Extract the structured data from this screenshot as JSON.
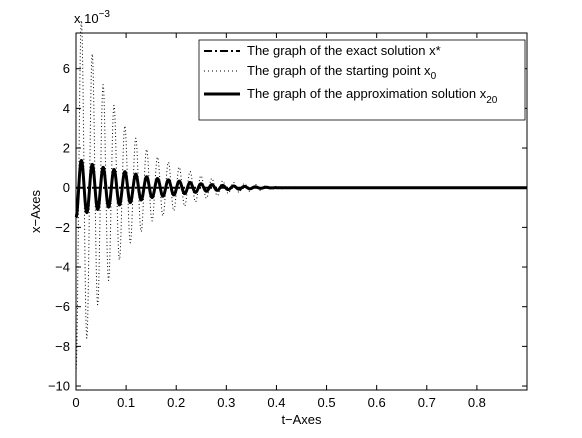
{
  "chart_data": {
    "type": "line",
    "xlabel": "t−Axes",
    "ylabel": "x−Axes",
    "scale_label_base": "x 10",
    "scale_label_exp": "−3",
    "xlim": [
      0,
      0.9
    ],
    "ylim": [
      -10.2,
      7.8
    ],
    "xticks": [
      0,
      0.1,
      0.2,
      0.3,
      0.4,
      0.5,
      0.6,
      0.7,
      0.8
    ],
    "xtick_labels": [
      "0",
      "0.1",
      "0.2",
      "0.3",
      "0.4",
      "0.5",
      "0.6",
      "0.7",
      "0.8"
    ],
    "yticks": [
      -10,
      -8,
      -6,
      -4,
      -2,
      0,
      2,
      4,
      6
    ],
    "ytick_labels": [
      "−10",
      "−8",
      "−6",
      "−4",
      "−2",
      "0",
      "2",
      "4",
      "6"
    ],
    "grid": false,
    "legend_position": "top-right",
    "series": [
      {
        "name": "The graph of the exact solution x*",
        "legend_main": "The graph of the exact solution x*",
        "legend_sub": "",
        "style": "dashdot",
        "model": "constant",
        "value": 0
      },
      {
        "name": "The graph of the starting point x0",
        "legend_main": "The graph of the starting point x",
        "legend_sub": "0",
        "style": "dotted",
        "model": "damped_oscillation",
        "period": 0.0217,
        "peaks": [
          [
            0.0,
            -9.3
          ],
          [
            0.024,
            7.4
          ],
          [
            0.05,
            5.4
          ],
          [
            0.1,
            3.0
          ],
          [
            0.15,
            1.7
          ],
          [
            0.2,
            1.1
          ],
          [
            0.25,
            0.6
          ],
          [
            0.3,
            0.3
          ],
          [
            0.35,
            0.18
          ],
          [
            0.4,
            0.08
          ],
          [
            0.45,
            0.0
          ]
        ]
      },
      {
        "name": "The graph of the approximation solution x20",
        "legend_main": "The graph of the approximation solution x",
        "legend_sub": "20",
        "style": "solid-thick",
        "model": "damped_oscillation",
        "period": 0.0217,
        "peaks": [
          [
            0.0,
            -1.5
          ],
          [
            0.022,
            1.25
          ],
          [
            0.05,
            1.05
          ],
          [
            0.1,
            0.8
          ],
          [
            0.15,
            0.5
          ],
          [
            0.2,
            0.35
          ],
          [
            0.25,
            0.2
          ],
          [
            0.3,
            0.1
          ],
          [
            0.35,
            0.05
          ],
          [
            0.4,
            0.0
          ]
        ]
      }
    ]
  }
}
